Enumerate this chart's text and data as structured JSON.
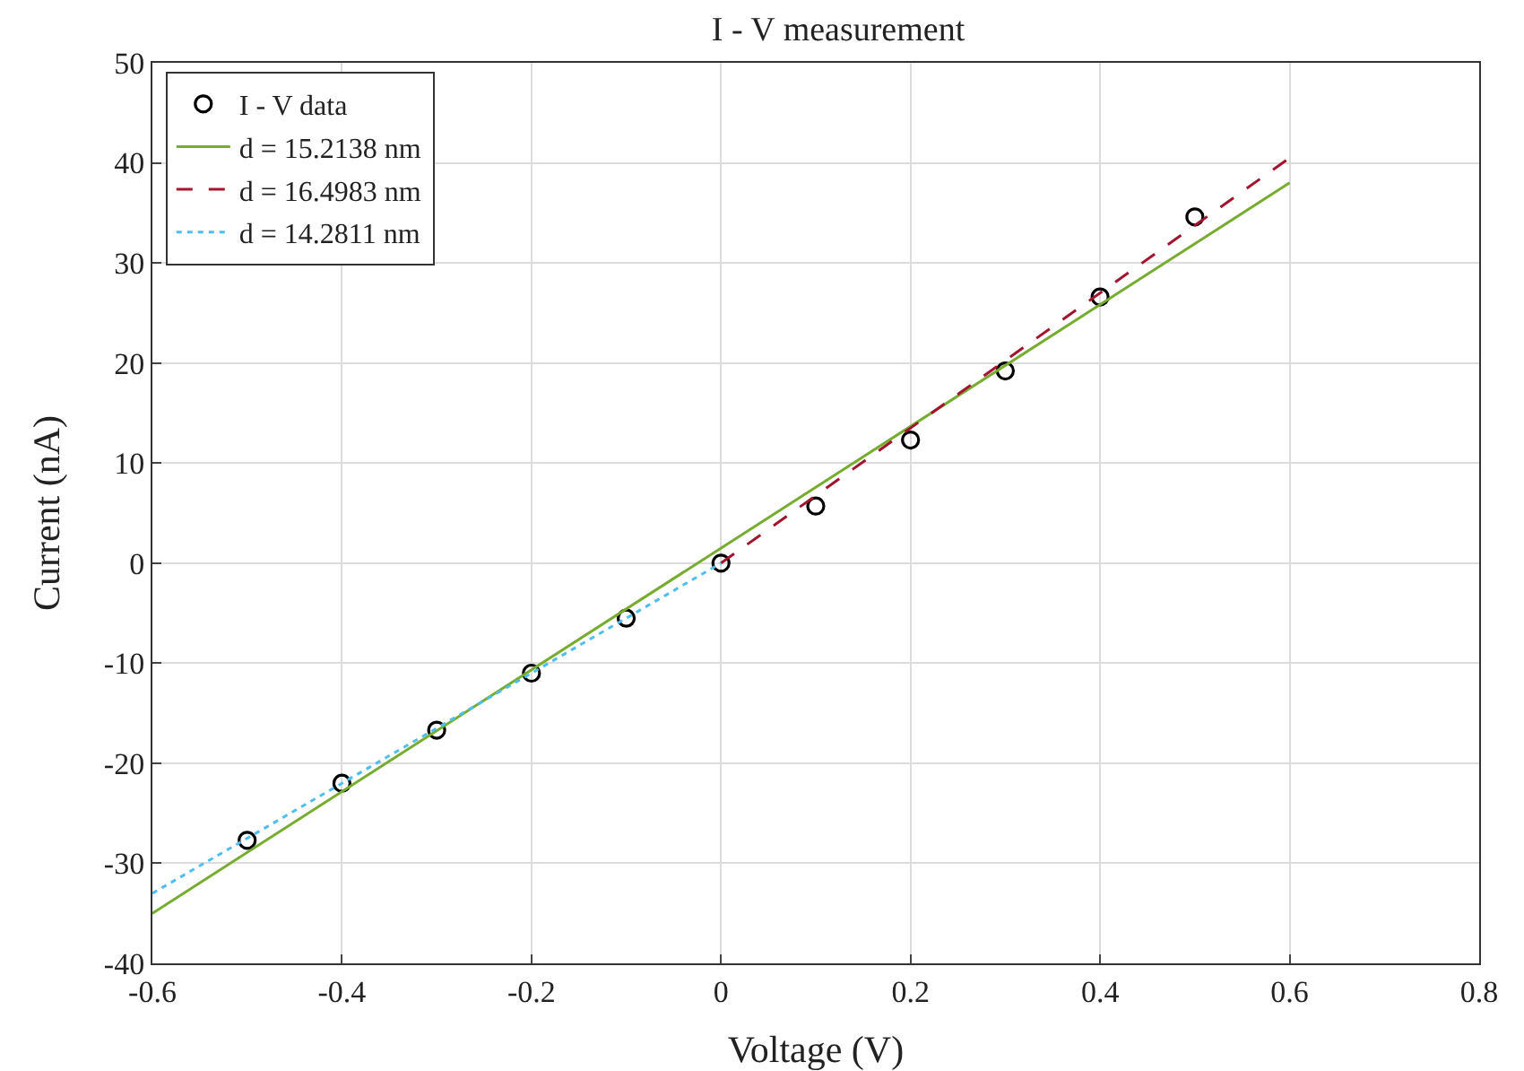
{
  "chart_data": {
    "type": "scatter",
    "title": "I - V measurement",
    "xlabel": "Voltage (V)",
    "ylabel": "Current (nA)",
    "xlim": [
      -0.6,
      0.8
    ],
    "xticks": [
      -0.6,
      -0.4,
      -0.2,
      0,
      0.2,
      0.4,
      0.6,
      0.8
    ],
    "ylim": [
      -40,
      50
    ],
    "yticks": [
      -40,
      -30,
      -20,
      -10,
      0,
      10,
      20,
      30,
      40,
      50
    ],
    "grid": true,
    "legend": "top left",
    "series": [
      {
        "name": "I - V data",
        "type": "scatter",
        "marker": "circle",
        "color": "#000000",
        "x": [
          -0.5,
          -0.4,
          -0.3,
          -0.2,
          -0.1,
          0,
          0.1,
          0.2,
          0.3,
          0.4,
          0.5
        ],
        "values": [
          -27.7,
          -22,
          -16.7,
          -11,
          -5.5,
          0,
          5.7,
          12.3,
          19.2,
          26.6,
          34.6
        ]
      },
      {
        "name": "d = 15.2138 nm",
        "type": "line",
        "line_style": "solid",
        "color": "#77ac30",
        "x": [
          -0.6,
          0.6
        ],
        "values": [
          -35,
          38
        ]
      },
      {
        "name": "d = 16.4983 nm",
        "type": "line",
        "line_style": "dashed",
        "color": "#a2142f",
        "x": [
          0,
          0.6
        ],
        "values": [
          0,
          40.5
        ]
      },
      {
        "name": "d = 14.2811 nm",
        "type": "line",
        "line_style": "dotted",
        "color": "#4dbeee",
        "x": [
          -0.6,
          0
        ],
        "values": [
          -33,
          0
        ]
      }
    ]
  }
}
